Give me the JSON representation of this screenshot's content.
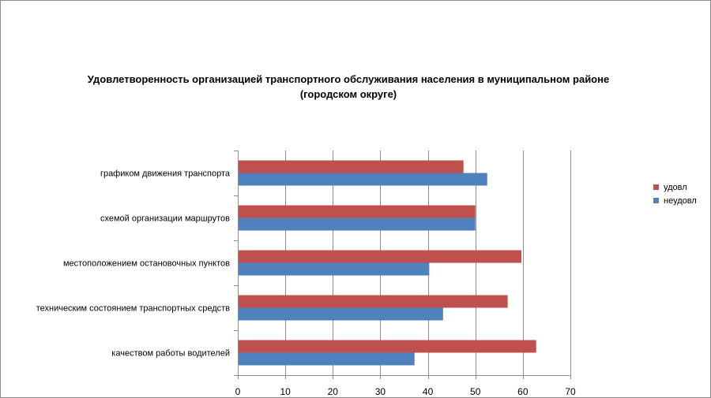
{
  "chart_data": {
    "type": "bar",
    "orientation": "horizontal",
    "title_line1": "Удовлетворенность организацией транспортного обслуживания населения в муниципальном районе",
    "title_line2": "(городском округе)",
    "categories": [
      "графиком движения транспорта",
      "схемой организации маршрутов",
      "местоположением остановочных пунктов",
      "техническим состоянием транспортных средств",
      "качеством работы водителей"
    ],
    "series": [
      {
        "name": "удовл",
        "color": "#c0504d",
        "values": [
          47.5,
          50,
          59.7,
          56.8,
          62.8
        ]
      },
      {
        "name": "неудовл",
        "color": "#4f81bd",
        "values": [
          52.5,
          50,
          40.3,
          43.2,
          37.2
        ]
      }
    ],
    "xlim": [
      0,
      70
    ],
    "xticks": [
      "0",
      "10",
      "20",
      "30",
      "40",
      "50",
      "60",
      "70"
    ],
    "grid": "vertical",
    "legend_position": "right"
  }
}
